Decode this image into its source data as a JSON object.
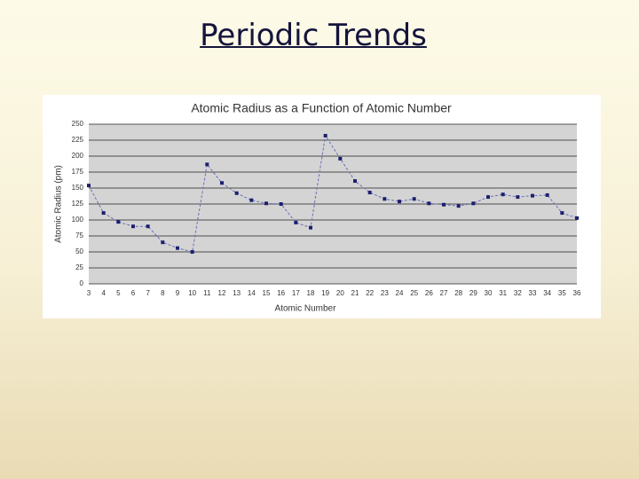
{
  "slide": {
    "title": "Periodic Trends"
  },
  "chart_data": {
    "type": "line",
    "title": "Atomic Radius as a Function of Atomic Number",
    "x_label": "Atomic Number",
    "y_label": "Atomic Radius (pm)",
    "categories": [
      "3",
      "4",
      "5",
      "6",
      "7",
      "8",
      "9",
      "10",
      "11",
      "12",
      "13",
      "14",
      "15",
      "16",
      "17",
      "18",
      "19",
      "20",
      "21",
      "22",
      "23",
      "24",
      "25",
      "26",
      "27",
      "28",
      "29",
      "30",
      "31",
      "32",
      "33",
      "34",
      "35",
      "36"
    ],
    "values": [
      154,
      111,
      97,
      90,
      90,
      65,
      56,
      50,
      187,
      158,
      142,
      131,
      126,
      125,
      96,
      88,
      232,
      196,
      161,
      143,
      133,
      129,
      133,
      126,
      124,
      122,
      126,
      136,
      140,
      136,
      138,
      139,
      111,
      103
    ],
    "color": "#6a6fb8",
    "marker_color": "#1c1f6e",
    "ylim": [
      0,
      250
    ],
    "yticks": [
      0,
      25,
      50,
      75,
      100,
      125,
      150,
      175,
      200,
      225,
      250
    ],
    "grid": true
  }
}
